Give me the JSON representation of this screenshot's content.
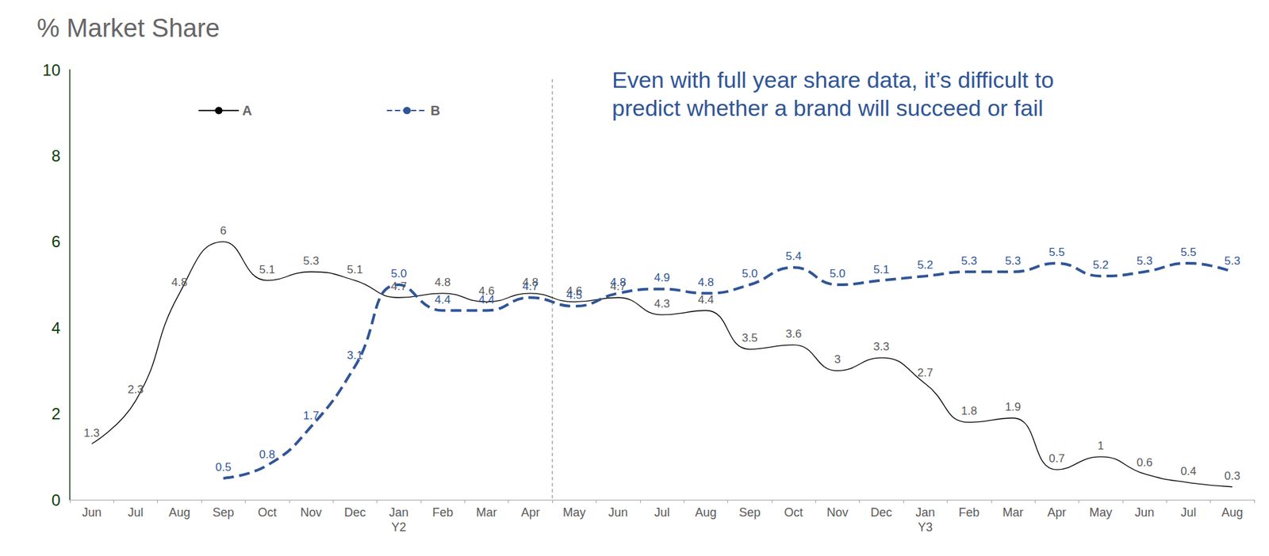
{
  "chart_data": {
    "type": "line",
    "title": "% Market Share",
    "annotation": "Even with full year share data, it’s difficult to\npredict whether a brand will succeed or fail",
    "categories": [
      "Jun",
      "Jul",
      "Aug",
      "Sep",
      "Oct",
      "Nov",
      "Dec",
      "Jan\nY2",
      "Feb",
      "Mar",
      "Apr",
      "May",
      "Jun",
      "Jul",
      "Aug",
      "Sep",
      "Oct",
      "Nov",
      "Dec",
      "Jan\nY3",
      "Feb",
      "Mar",
      "Apr",
      "May",
      "Jun",
      "Jul",
      "Aug"
    ],
    "series": [
      {
        "name": "A",
        "color": "#000000",
        "line_style": "solid",
        "values": [
          1.3,
          2.3,
          4.8,
          6,
          5.1,
          5.3,
          5.1,
          4.7,
          4.8,
          4.6,
          4.8,
          4.6,
          4.7,
          4.3,
          4.4,
          3.5,
          3.6,
          3,
          3.3,
          2.7,
          1.8,
          1.9,
          0.7,
          1,
          0.6,
          0.4,
          0.3
        ]
      },
      {
        "name": "B",
        "color": "#2f5597",
        "line_style": "dashed",
        "values": [
          null,
          null,
          null,
          0.5,
          0.8,
          1.7,
          3.1,
          5.0,
          4.4,
          4.4,
          4.7,
          4.5,
          4.8,
          4.9,
          4.8,
          5.0,
          5.4,
          5.0,
          5.1,
          5.2,
          5.3,
          5.3,
          5.5,
          5.2,
          5.3,
          5.5,
          5.3
        ],
        "value_labels": [
          null,
          null,
          null,
          "0.5",
          "0.8",
          "1.7",
          "3.1",
          "5.0",
          "4.4",
          "4.4",
          "4.7",
          "4.5",
          "4.8",
          "4.9",
          "4.8",
          "5.0",
          "5.4",
          "5.0",
          "5.1",
          "5.2",
          "5.3",
          "5.3",
          "5.5",
          "5.2",
          "5.3",
          "5.5",
          "5.3"
        ]
      }
    ],
    "ylim": [
      0,
      10
    ],
    "yticks": [
      0,
      2,
      4,
      6,
      8,
      10
    ],
    "grid": false,
    "legend": "top-left",
    "data_labels": true
  }
}
